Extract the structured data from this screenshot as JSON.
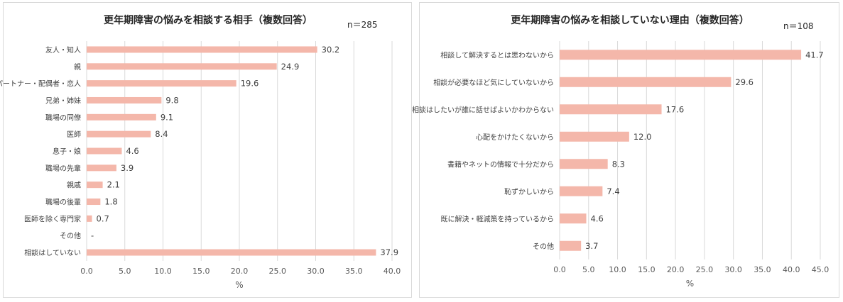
{
  "chart_data": [
    {
      "type": "bar",
      "orientation": "horizontal",
      "title": "更年期障害の悩みを相談する相手（複数回答）",
      "note": "n＝285",
      "xlabel": "%",
      "xlim": [
        0,
        40
      ],
      "xticks": [
        "0.0",
        "5.0",
        "10.0",
        "15.0",
        "20.0",
        "25.0",
        "30.0",
        "35.0",
        "40.0"
      ],
      "grid": "vertical",
      "bar_color": "#f4b7aa",
      "categories": [
        "友人・知人",
        "親",
        "パートナー・配偶者・恋人",
        "兄弟・姉妹",
        "職場の同僚",
        "医師",
        "息子・娘",
        "職場の先輩",
        "親戚",
        "職場の後輩",
        "医師を除く専門家",
        "その他",
        "相談はしていない"
      ],
      "values": [
        30.2,
        24.9,
        19.6,
        9.8,
        9.1,
        8.4,
        4.6,
        3.9,
        2.1,
        1.8,
        0.7,
        0,
        37.9
      ],
      "labels": [
        "30.2",
        "24.9",
        "19.6",
        "9.8",
        "9.1",
        "8.4",
        "4.6",
        "3.9",
        "2.1",
        "1.8",
        "0.7",
        "-",
        "37.9"
      ]
    },
    {
      "type": "bar",
      "orientation": "horizontal",
      "title": "更年期障害の悩みを相談していない理由（複数回答）",
      "note": "n＝108",
      "xlabel": "%",
      "xlim": [
        0,
        45
      ],
      "xticks": [
        "0.0",
        "5.0",
        "10.0",
        "15.0",
        "20.0",
        "25.0",
        "30.0",
        "35.0",
        "40.0",
        "45.0"
      ],
      "grid": "vertical",
      "bar_color": "#f4b7aa",
      "categories": [
        "相談して解決するとは思わないから",
        "相談が必要なほど気にしていないから",
        "相談はしたいが誰に話せばよいかわからない",
        "心配をかけたくないから",
        "書籍やネットの情報で十分だから",
        "恥ずかしいから",
        "既に解決・軽減策を持っているから",
        "その他"
      ],
      "values": [
        41.7,
        29.6,
        17.6,
        12.0,
        8.3,
        7.4,
        4.6,
        3.7
      ],
      "labels": [
        "41.7",
        "29.6",
        "17.6",
        "12.0",
        "8.3",
        "7.4",
        "4.6",
        "3.7"
      ]
    }
  ]
}
